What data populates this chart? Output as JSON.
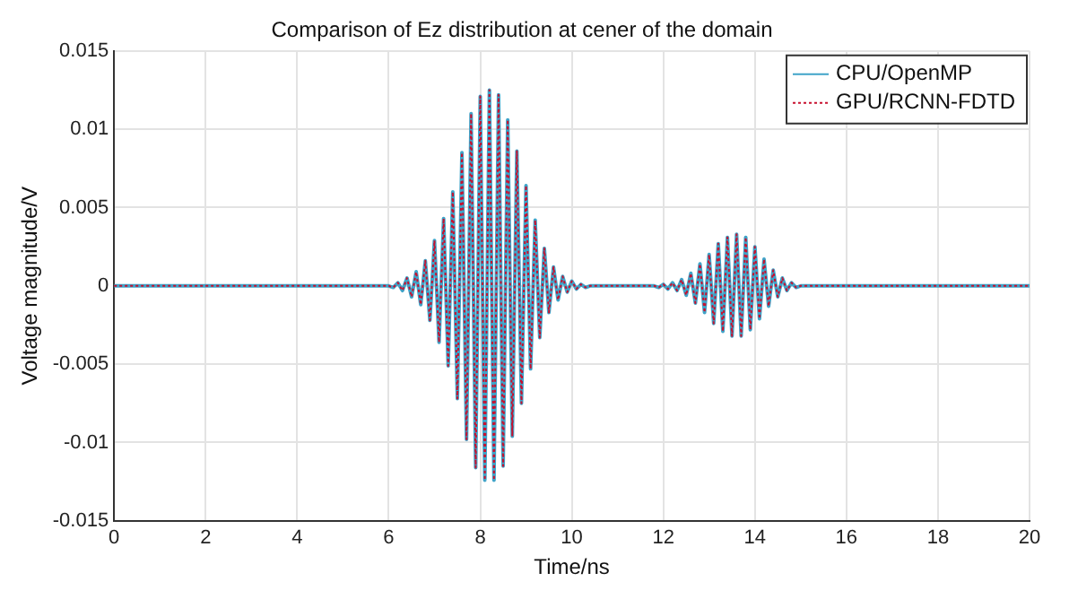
{
  "chart_data": {
    "type": "line",
    "title": "Comparison of Ez distribution at cener of the domain",
    "xlabel": "Time/ns",
    "ylabel": "Voltage magnitude/V",
    "x": [
      0,
      6.0,
      6.1,
      6.2,
      6.3,
      6.4,
      6.5,
      6.6,
      6.7,
      6.8,
      6.9,
      7.0,
      7.1,
      7.2,
      7.3,
      7.4,
      7.5,
      7.6,
      7.7,
      7.8,
      7.9,
      8.0,
      8.1,
      8.2,
      8.3,
      8.4,
      8.5,
      8.6,
      8.7,
      8.8,
      8.9,
      9.0,
      9.1,
      9.2,
      9.3,
      9.4,
      9.5,
      9.6,
      9.7,
      9.8,
      9.9,
      10.0,
      10.1,
      10.2,
      10.3,
      10.4,
      11.8,
      11.9,
      12.0,
      12.1,
      12.2,
      12.3,
      12.4,
      12.5,
      12.6,
      12.7,
      12.8,
      12.9,
      13.0,
      13.1,
      13.2,
      13.3,
      13.4,
      13.5,
      13.6,
      13.7,
      13.8,
      13.9,
      14.0,
      14.1,
      14.2,
      14.3,
      14.4,
      14.5,
      14.6,
      14.7,
      14.8,
      14.9,
      15.0,
      20
    ],
    "series": [
      {
        "name": "CPU/OpenMP",
        "color": "#3fa3c8",
        "line_style": "solid",
        "values": [
          0,
          0,
          -0.0001,
          0.0002,
          -0.0003,
          0.0005,
          -0.0007,
          0.0009,
          -0.0012,
          0.0016,
          -0.0022,
          0.0029,
          -0.0036,
          0.0043,
          -0.0051,
          0.006,
          -0.0072,
          0.0085,
          -0.0098,
          0.011,
          -0.0116,
          0.0121,
          -0.0124,
          0.0125,
          -0.0124,
          0.0122,
          -0.0115,
          0.0106,
          -0.0096,
          0.0086,
          -0.0075,
          0.0064,
          -0.0053,
          0.0042,
          -0.0033,
          0.0024,
          -0.0017,
          0.0012,
          -0.0009,
          0.0006,
          -0.0004,
          0.0003,
          -0.0002,
          0.0001,
          -0.0001,
          0,
          0,
          -0.0001,
          0.0001,
          -0.0002,
          0.0002,
          -0.0003,
          0.0004,
          -0.0006,
          0.0008,
          -0.0011,
          0.0014,
          -0.0017,
          0.002,
          -0.0024,
          0.0027,
          -0.0029,
          0.0031,
          -0.0032,
          0.0033,
          -0.0032,
          0.0031,
          -0.0028,
          0.0025,
          -0.0021,
          0.0017,
          -0.0013,
          0.001,
          -0.0007,
          0.0005,
          -0.0003,
          0.0002,
          -0.0001,
          0,
          0
        ]
      },
      {
        "name": "GPU/RCNN-FDTD",
        "color": "#c8102e",
        "line_style": "dotted",
        "values": [
          0,
          0,
          -0.0001,
          0.0002,
          -0.0003,
          0.0005,
          -0.0007,
          0.0009,
          -0.0012,
          0.0016,
          -0.0022,
          0.0029,
          -0.0036,
          0.0043,
          -0.0051,
          0.006,
          -0.0072,
          0.0085,
          -0.0098,
          0.011,
          -0.0116,
          0.0121,
          -0.0124,
          0.0125,
          -0.0124,
          0.0122,
          -0.0115,
          0.0106,
          -0.0096,
          0.0086,
          -0.0075,
          0.0064,
          -0.0053,
          0.0042,
          -0.0033,
          0.0024,
          -0.0017,
          0.0012,
          -0.0009,
          0.0006,
          -0.0004,
          0.0003,
          -0.0002,
          0.0001,
          -0.0001,
          0,
          0,
          -0.0001,
          0.0001,
          -0.0002,
          0.0002,
          -0.0003,
          0.0004,
          -0.0006,
          0.0008,
          -0.0011,
          0.0014,
          -0.0017,
          0.002,
          -0.0024,
          0.0027,
          -0.0029,
          0.0031,
          -0.0032,
          0.0033,
          -0.0032,
          0.0031,
          -0.0028,
          0.0025,
          -0.0021,
          0.0017,
          -0.0013,
          0.001,
          -0.0007,
          0.0005,
          -0.0003,
          0.0002,
          -0.0001,
          0,
          0
        ]
      }
    ],
    "xlim": [
      0,
      20
    ],
    "xticks": [
      0,
      2,
      4,
      6,
      8,
      10,
      12,
      14,
      16,
      18,
      20
    ],
    "ylim": [
      -0.015,
      0.015
    ],
    "yticks": [
      -0.015,
      -0.01,
      -0.005,
      0,
      0.005,
      0.01,
      0.015
    ],
    "grid": true,
    "legend": "top right",
    "marker": "none"
  }
}
